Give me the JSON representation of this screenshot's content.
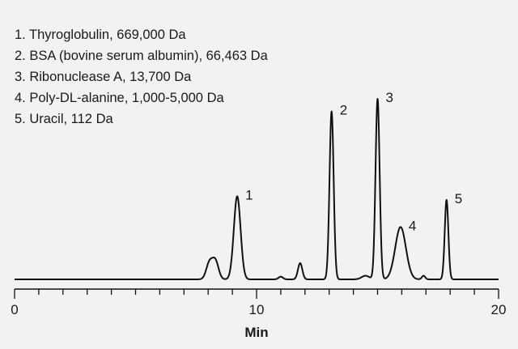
{
  "chart_data": {
    "type": "line",
    "title": "",
    "xlabel": "Min",
    "ylabel": "",
    "xlim": [
      0,
      20
    ],
    "ylim": [
      0,
      1
    ],
    "x_ticks": [
      0,
      10,
      20
    ],
    "x_minor_step": 1,
    "grid": false,
    "legend_placement": "top-left",
    "line_color": "#111111",
    "legend": [
      "1. Thyroglobulin, 669,000 Da",
      "2. BSA (bovine serum albumin), 66,463 Da",
      "3. Ribonuclease A, 13,700 Da",
      "4. Poly-DL-alanine, 1,000-5,000 Da",
      "5. Uracil, 112 Da"
    ],
    "peaks": [
      {
        "label": "",
        "x": 8.05,
        "y": 0.09
      },
      {
        "label": "",
        "x": 8.3,
        "y": 0.1
      },
      {
        "label": "1",
        "x": 9.2,
        "y": 0.46
      },
      {
        "label": "",
        "x": 11.0,
        "y": 0.015
      },
      {
        "label": "",
        "x": 11.8,
        "y": 0.09
      },
      {
        "label": "2",
        "x": 13.1,
        "y": 0.93
      },
      {
        "label": "",
        "x": 14.5,
        "y": 0.02
      },
      {
        "label": "3",
        "x": 15.0,
        "y": 1.0
      },
      {
        "label": "4",
        "x": 15.95,
        "y": 0.29
      },
      {
        "label": "",
        "x": 16.9,
        "y": 0.02
      },
      {
        "label": "5",
        "x": 17.85,
        "y": 0.44
      }
    ]
  }
}
